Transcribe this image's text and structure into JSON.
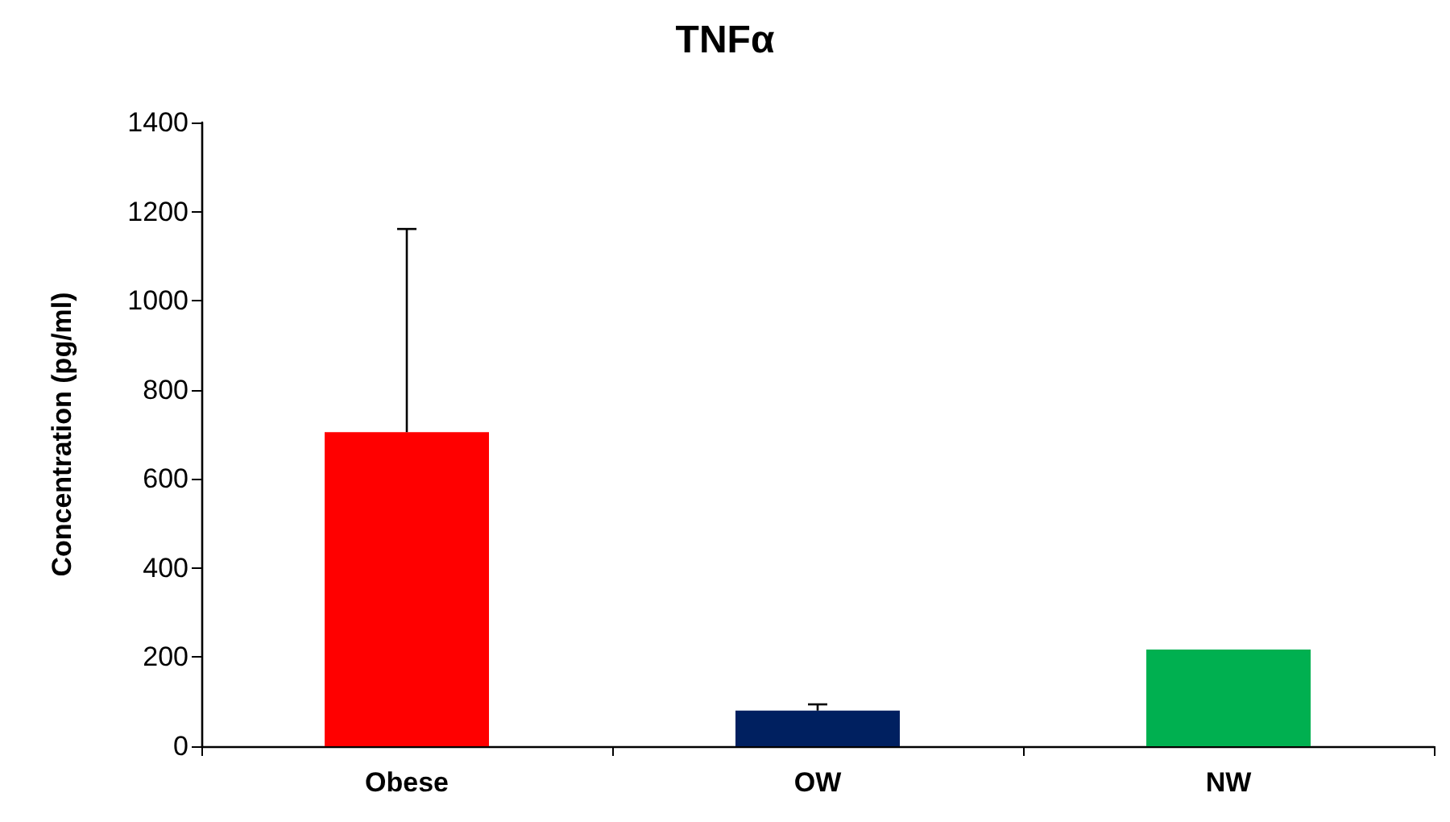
{
  "chart_data": {
    "type": "bar",
    "title": "TNFα",
    "ylabel": "Concentration (pg/ml)",
    "categories": [
      "Obese",
      "OW",
      "NW"
    ],
    "values": [
      705,
      80,
      217
    ],
    "colors": [
      "#ff0000",
      "#002060",
      "#00b050"
    ],
    "errors": [
      [
        705,
        1161
      ],
      [
        80,
        94
      ],
      null
    ],
    "ylim": [
      0,
      1400
    ],
    "yticks": [
      0,
      200,
      400,
      600,
      800,
      1000,
      1200,
      1400
    ],
    "grid": false
  }
}
